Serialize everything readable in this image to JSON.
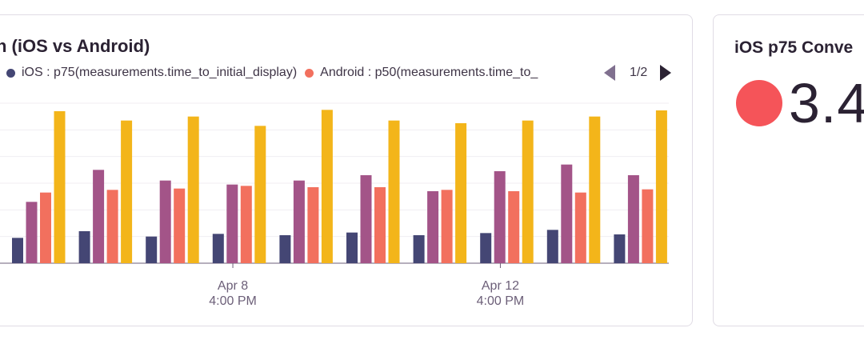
{
  "left_card": {
    "title": "n (iOS vs Android)",
    "legend": [
      {
        "label": "iOS : p75(measurements.time_to_initial_display)",
        "color": "#444674"
      },
      {
        "label": "Android : p50(measurements.time_to_",
        "color": "#f2705e"
      }
    ],
    "pager": {
      "text": "1/2"
    }
  },
  "right_card": {
    "title": "iOS p75 Conve",
    "value": "3.4",
    "status_color": "#f55459"
  },
  "chart_data": {
    "type": "bar",
    "series_colors": [
      "#444674",
      "#a35488",
      "#f2705e",
      "#f3b51a"
    ],
    "series_values": [
      [
        0.95,
        2.3,
        2.65,
        5.7
      ],
      [
        1.2,
        3.5,
        2.75,
        5.35
      ],
      [
        1.0,
        3.1,
        2.8,
        5.5
      ],
      [
        1.1,
        2.95,
        2.9,
        5.15
      ],
      [
        1.05,
        3.1,
        2.85,
        5.75
      ],
      [
        1.15,
        3.3,
        2.85,
        5.35
      ],
      [
        1.05,
        2.7,
        2.75,
        5.25
      ],
      [
        1.13,
        3.45,
        2.7,
        5.35
      ],
      [
        1.25,
        3.7,
        2.65,
        5.5
      ],
      [
        1.08,
        3.3,
        2.77,
        5.73
      ]
    ],
    "ylim": [
      0,
      6
    ],
    "x_ticks": [
      {
        "line1": "Apr 8",
        "line2": "4:00 PM",
        "group": 3
      },
      {
        "line1": "Apr 12",
        "line2": "4:00 PM",
        "group": 7
      }
    ],
    "grid": true
  }
}
